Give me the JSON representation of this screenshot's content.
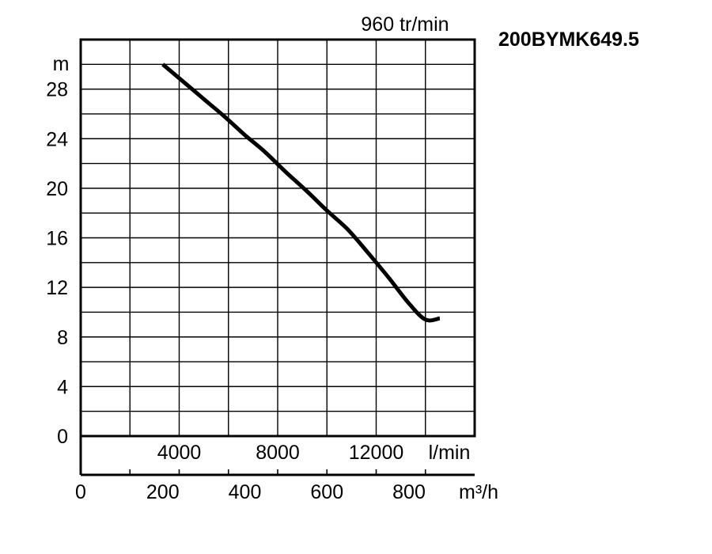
{
  "model_title": "200BYMK649.5",
  "chart_data": {
    "type": "line",
    "title": "960 tr/min",
    "ylabel": "m",
    "xlabel": "m³/h",
    "secondary_xlabel": "l/min",
    "ylim": [
      0,
      32
    ],
    "xlim": [
      0,
      960
    ],
    "secondary_xlim": [
      0,
      16000
    ],
    "yticks": [
      0,
      4,
      8,
      12,
      16,
      20,
      24,
      28
    ],
    "xticks": [
      0,
      200,
      400,
      600,
      800
    ],
    "secondary_xticks": [
      4000,
      8000,
      12000
    ],
    "grid": true,
    "series": [
      {
        "name": "",
        "x": [
          200,
          250,
          300,
          350,
          400,
          450,
          500,
          550,
          600,
          650,
          700,
          750,
          800,
          840,
          875
        ],
        "y": [
          30,
          28.6,
          27.2,
          25.8,
          24.3,
          22.9,
          21.3,
          19.8,
          18.2,
          16.7,
          14.8,
          12.8,
          10.7,
          9.4,
          9.5
        ]
      }
    ]
  }
}
